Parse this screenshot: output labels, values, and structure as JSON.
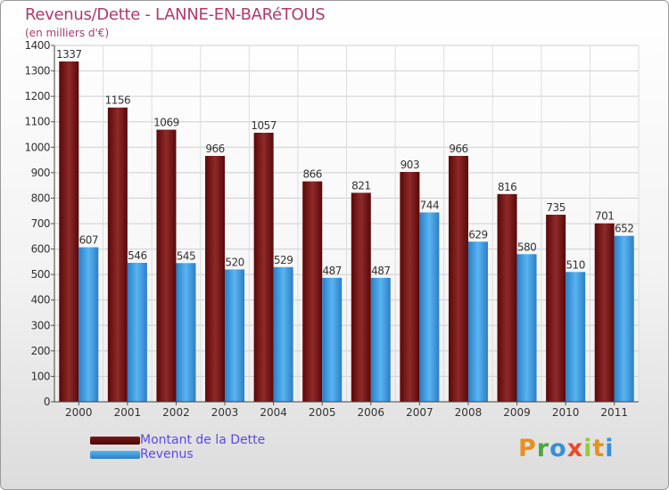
{
  "header": {
    "title": "Revenus/Dette - LANNE-EN-BARéTOUS",
    "subtitle": "(en milliers d'€)"
  },
  "logo": {
    "text": "Proxiti",
    "letters": [
      "P",
      "r",
      "o",
      "x",
      "i",
      "t",
      "i"
    ],
    "colors": [
      "#e8901e",
      "#4aa83c",
      "#3a8ed8",
      "#e84a2a",
      "#9bc83a",
      "#e8901e",
      "#3a8ed8"
    ]
  },
  "chart_data": {
    "type": "bar",
    "title": "Revenus/Dette - LANNE-EN-BARéTOUS",
    "subtitle": "(en milliers d'€)",
    "categories": [
      "2000",
      "2001",
      "2002",
      "2003",
      "2004",
      "2005",
      "2006",
      "2007",
      "2008",
      "2009",
      "2010",
      "2011"
    ],
    "series": [
      {
        "name": "Montant de la Dette",
        "values": [
          1337,
          1156,
          1069,
          966,
          1057,
          866,
          821,
          903,
          966,
          816,
          735,
          701
        ],
        "color": "#7a1a1a"
      },
      {
        "name": "Revenus",
        "values": [
          607,
          546,
          545,
          520,
          529,
          487,
          487,
          744,
          629,
          580,
          510,
          652
        ],
        "color": "#3d9ee0"
      }
    ],
    "ylim": [
      0,
      1400
    ],
    "yticks": [
      0,
      100,
      200,
      300,
      400,
      500,
      600,
      700,
      800,
      900,
      1000,
      1100,
      1200,
      1300,
      1400
    ],
    "grid": true,
    "legend": "bottom-left"
  }
}
